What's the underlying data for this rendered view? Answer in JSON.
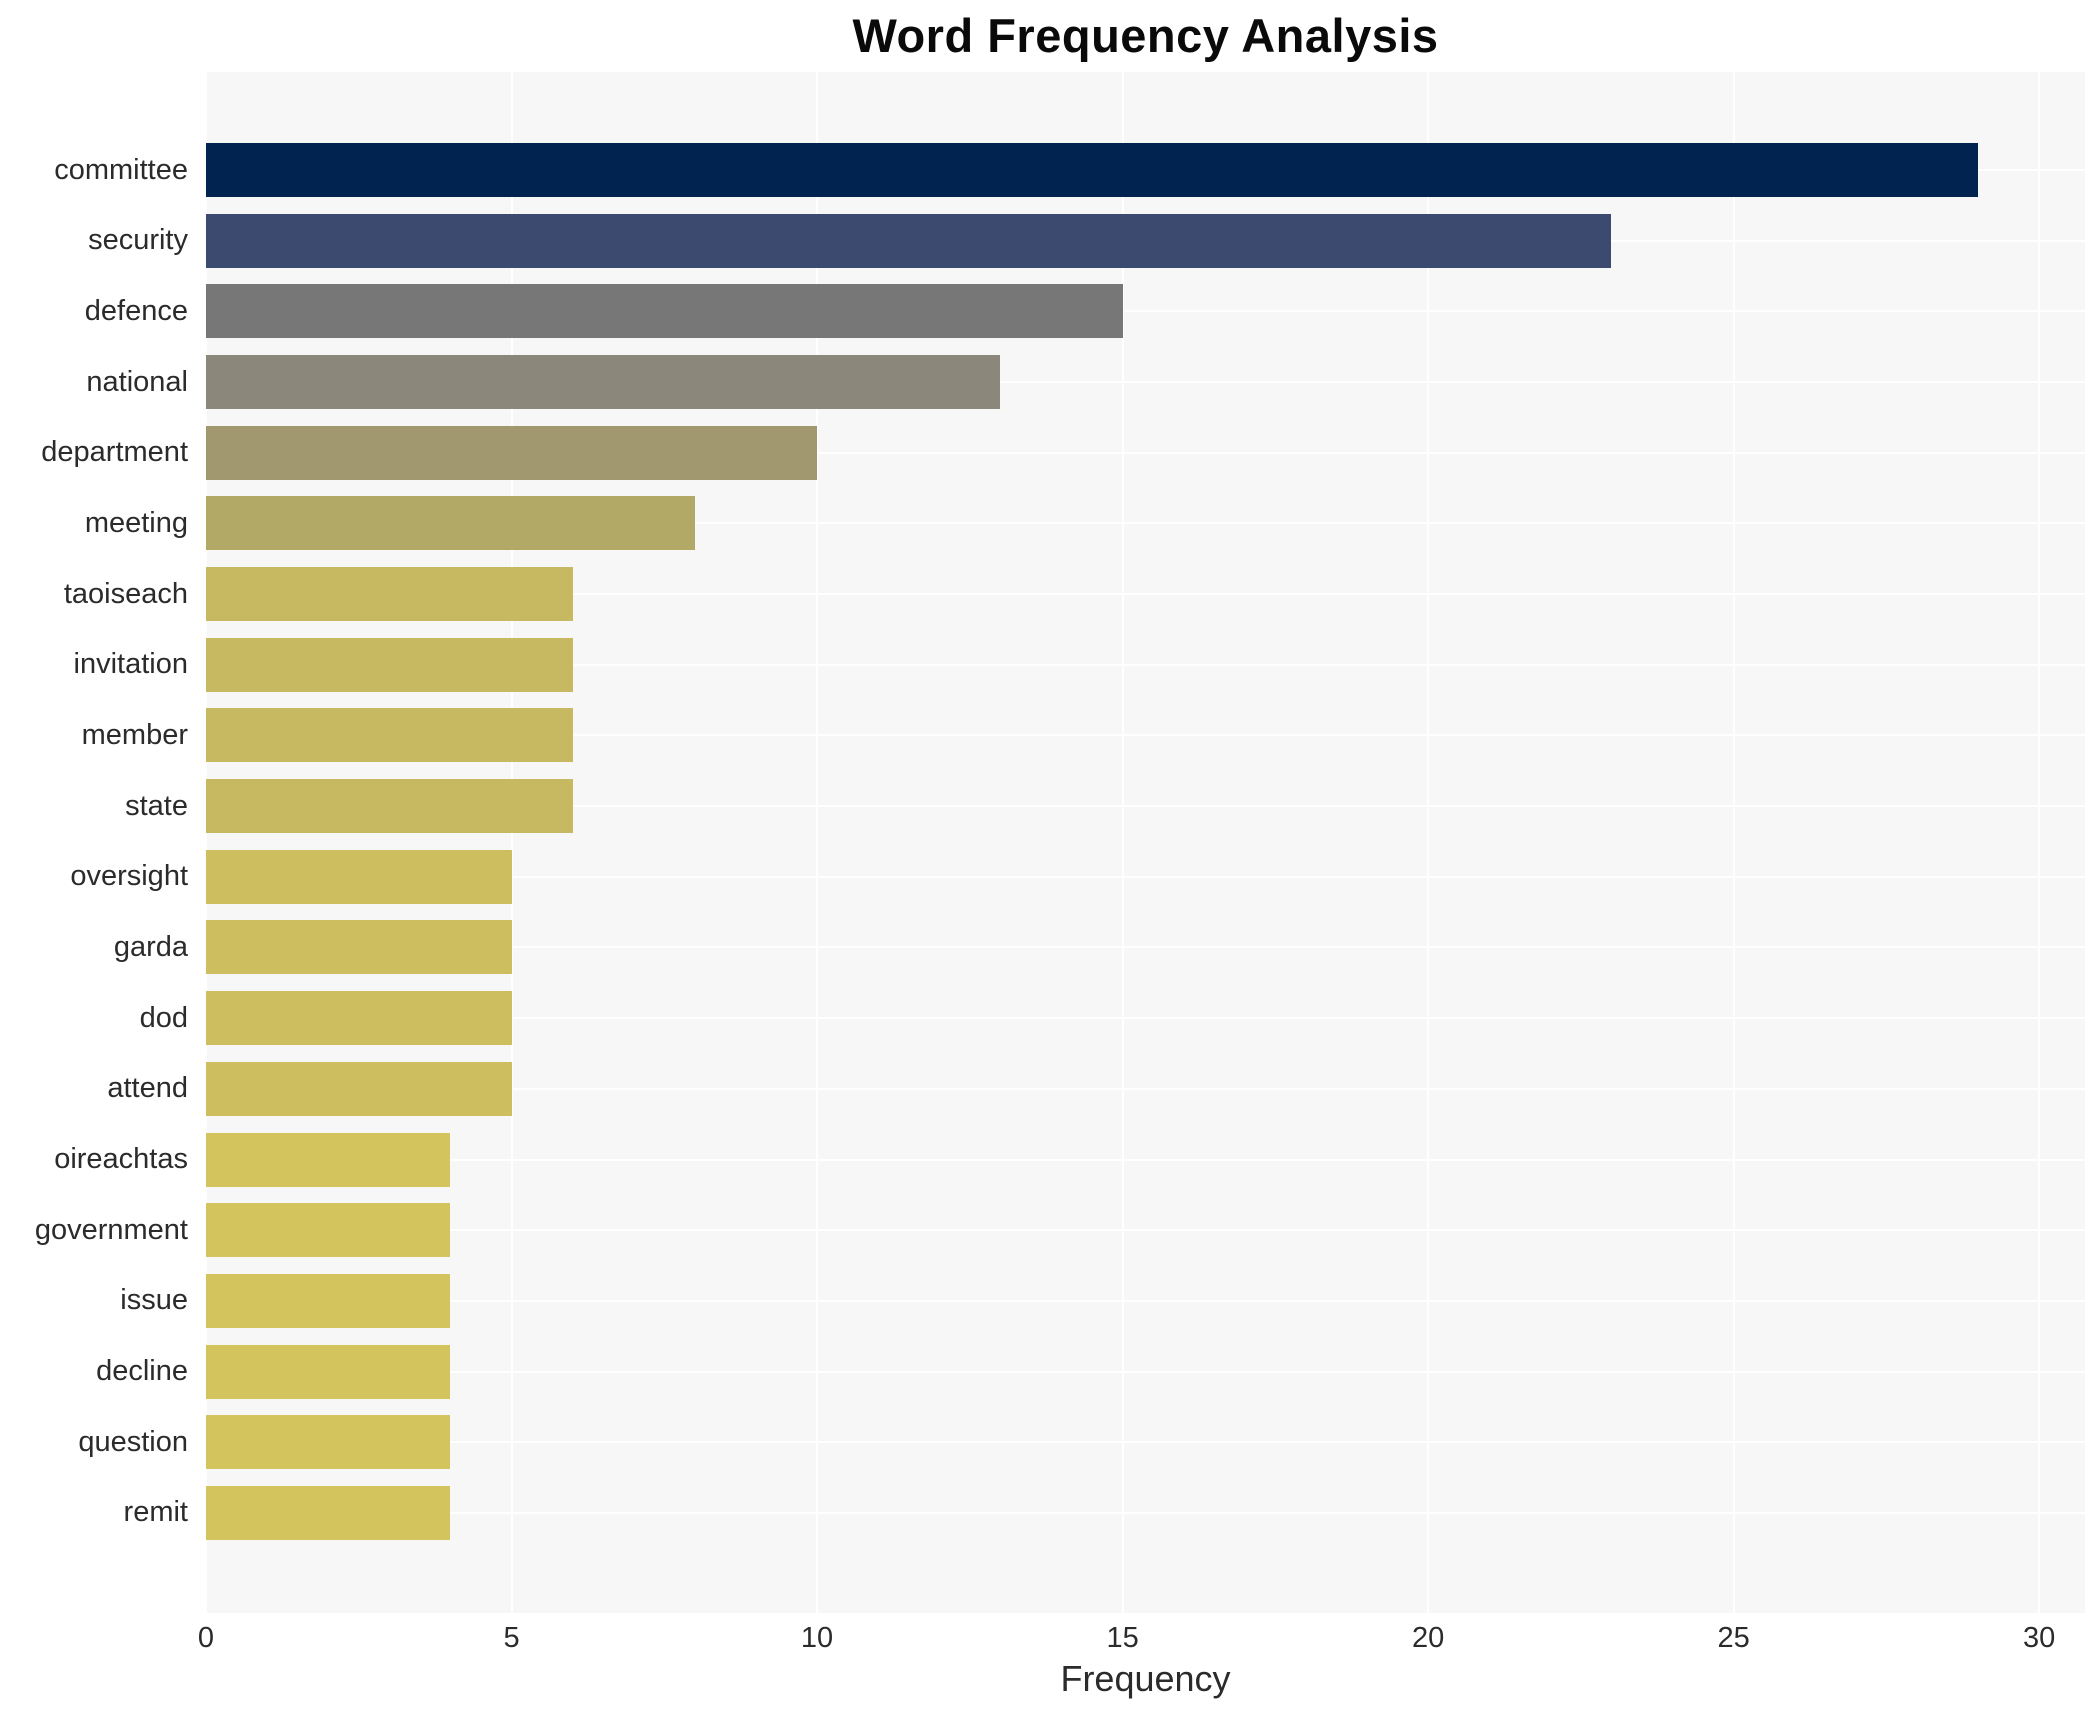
{
  "chart_data": {
    "type": "bar",
    "orientation": "horizontal",
    "title": "Word Frequency Analysis",
    "xlabel": "Frequency",
    "ylabel": "",
    "categories": [
      "committee",
      "security",
      "defence",
      "national",
      "department",
      "meeting",
      "taoiseach",
      "invitation",
      "member",
      "state",
      "oversight",
      "garda",
      "dod",
      "attend",
      "oireachtas",
      "government",
      "issue",
      "decline",
      "question",
      "remit"
    ],
    "values": [
      29,
      23,
      15,
      13,
      10,
      8,
      6,
      6,
      6,
      6,
      5,
      5,
      5,
      5,
      4,
      4,
      4,
      4,
      4,
      4
    ],
    "bar_colors": [
      "#00234f",
      "#3b4a6e",
      "#777777",
      "#8b887b",
      "#a1986f",
      "#b3a967",
      "#c6b961",
      "#c6b961",
      "#c6b961",
      "#c6b961",
      "#cdbf60",
      "#cdbf60",
      "#cdbf60",
      "#cdbf60",
      "#d4c45e",
      "#d4c45e",
      "#d4c45e",
      "#d4c45e",
      "#d4c45e",
      "#d4c45e"
    ],
    "xlim": [
      0,
      30.75
    ],
    "xticks": [
      0,
      5,
      10,
      15,
      20,
      25,
      30
    ],
    "grid": true,
    "legend": false
  },
  "style": {
    "plot_background": "#f7f7f7",
    "figure_background": "#ffffff",
    "gridline_color": "#ffffff",
    "text_color": "#2b2b2b",
    "title_color": "#0a0a0a"
  }
}
